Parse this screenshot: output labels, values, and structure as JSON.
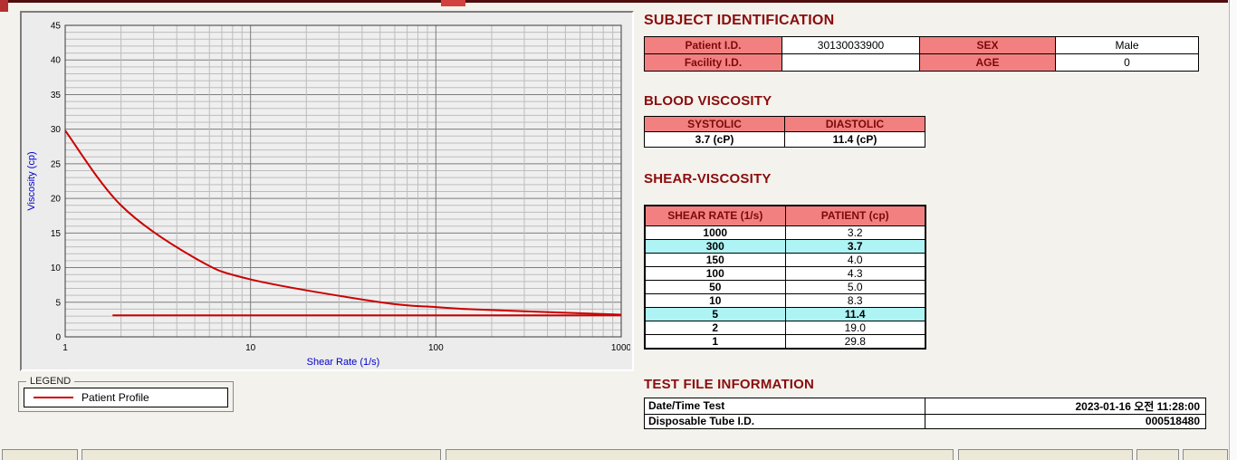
{
  "colors": {
    "heading": "#8b0c0c",
    "table_header_pink": "#f28080",
    "highlight_cyan": "#aef4f4",
    "line_red": "#cc0000",
    "axis_label_blue": "#0000cc"
  },
  "chart_data": {
    "type": "line",
    "title": "",
    "xlabel": "Shear Rate (1/s)",
    "ylabel": "Viscosity (cp)",
    "x_scale": "log",
    "xlim": [
      1,
      1000
    ],
    "ylim": [
      0,
      45
    ],
    "x_ticks": [
      1,
      10,
      100,
      1000
    ],
    "y_ticks": [
      0,
      5,
      10,
      15,
      20,
      25,
      30,
      35,
      40,
      45
    ],
    "grid": "on",
    "series": [
      {
        "name": "Patient Profile",
        "color": "#cc0000",
        "x": [
          1,
          2,
          5,
          10,
          50,
          100,
          150,
          300,
          1000
        ],
        "values": [
          29.8,
          19.0,
          11.4,
          8.3,
          5.0,
          4.3,
          4.0,
          3.7,
          3.2
        ]
      },
      {
        "name": "flat-reference-line",
        "color": "#cc0000",
        "x": [
          1.8,
          1000
        ],
        "values": [
          3.1,
          3.1
        ]
      }
    ],
    "legend": {
      "title": "LEGEND",
      "position": "below-left",
      "entries": [
        {
          "label": "Patient Profile",
          "color": "#cc0000"
        }
      ]
    }
  },
  "subject": {
    "heading": "SUBJECT IDENTIFICATION",
    "rows": [
      {
        "label1": "Patient I.D.",
        "value1": "30130033900",
        "label2": "SEX",
        "value2": "Male"
      },
      {
        "label1": "Facility I.D.",
        "value1": "",
        "label2": "AGE",
        "value2": "0"
      }
    ]
  },
  "blood_viscosity": {
    "heading": "BLOOD VISCOSITY",
    "columns": [
      "SYSTOLIC",
      "DIASTOLIC"
    ],
    "values": [
      "3.7 (cP)",
      "11.4 (cP)"
    ]
  },
  "shear_viscosity": {
    "heading": "SHEAR-VISCOSITY",
    "columns": [
      "SHEAR RATE (1/s)",
      "PATIENT (cp)"
    ],
    "rows": [
      {
        "rate": "1000",
        "value": "3.2",
        "highlight": false
      },
      {
        "rate": "300",
        "value": "3.7",
        "highlight": true
      },
      {
        "rate": "150",
        "value": "4.0",
        "highlight": false
      },
      {
        "rate": "100",
        "value": "4.3",
        "highlight": false
      },
      {
        "rate": "50",
        "value": "5.0",
        "highlight": false
      },
      {
        "rate": "10",
        "value": "8.3",
        "highlight": false
      },
      {
        "rate": "5",
        "value": "11.4",
        "highlight": true
      },
      {
        "rate": "2",
        "value": "19.0",
        "highlight": false
      },
      {
        "rate": "1",
        "value": "29.8",
        "highlight": false
      }
    ]
  },
  "test_file": {
    "heading": "TEST FILE INFORMATION",
    "rows": [
      {
        "label": "Date/Time Test",
        "value": "2023-01-16  오전 11:28:00"
      },
      {
        "label": "Disposable Tube I.D.",
        "value": "000518480"
      }
    ]
  }
}
